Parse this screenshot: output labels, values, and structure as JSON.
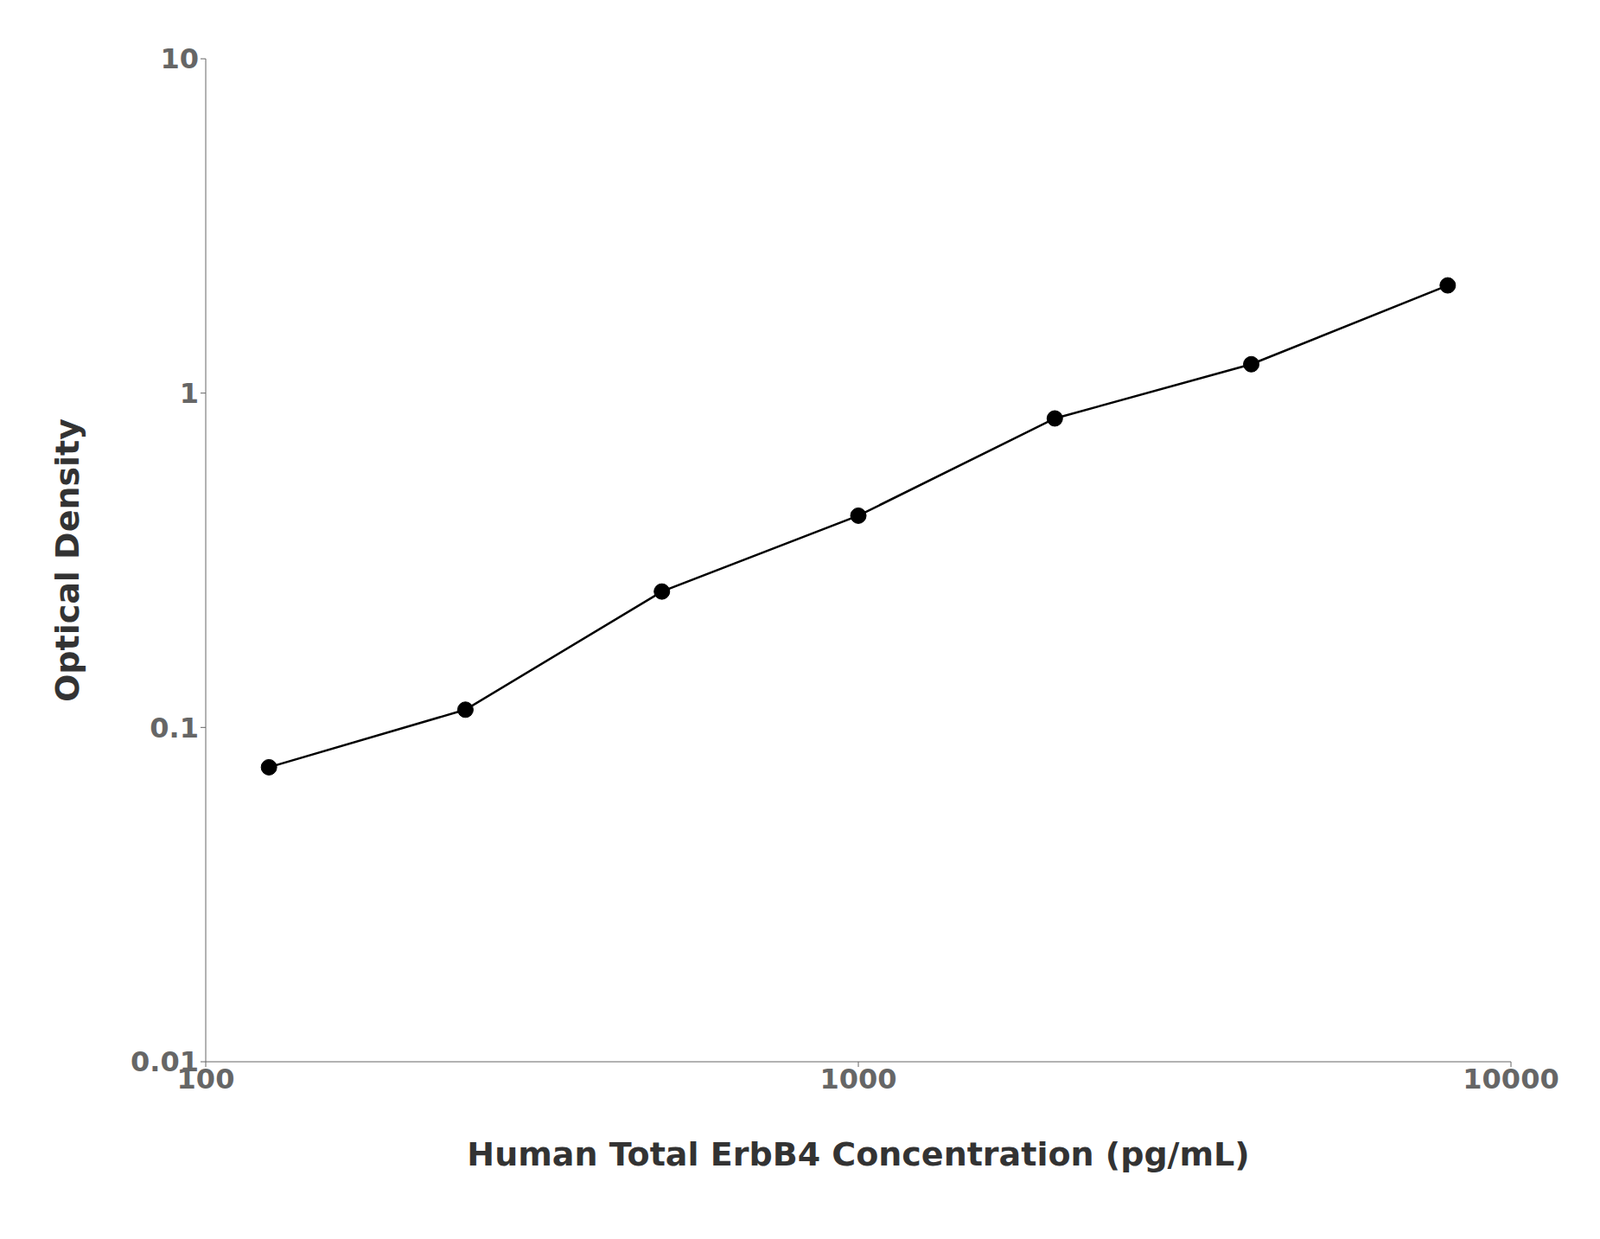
{
  "chart_data": {
    "type": "line",
    "x": [
      125,
      250,
      500,
      1000,
      2000,
      4000,
      8000
    ],
    "values": [
      0.076,
      0.113,
      0.255,
      0.43,
      0.84,
      1.22,
      2.1
    ],
    "xlabel": "Human Total ErbB4 Concentration (pg/mL)",
    "ylabel": "Optical Density",
    "xlim": [
      100,
      10000
    ],
    "ylim": [
      0.01,
      10
    ],
    "xticks": [
      100,
      1000,
      10000
    ],
    "yticks": [
      0.01,
      0.1,
      1,
      10
    ],
    "log": true,
    "grid": false,
    "color": "#000000",
    "marker": "circle"
  }
}
